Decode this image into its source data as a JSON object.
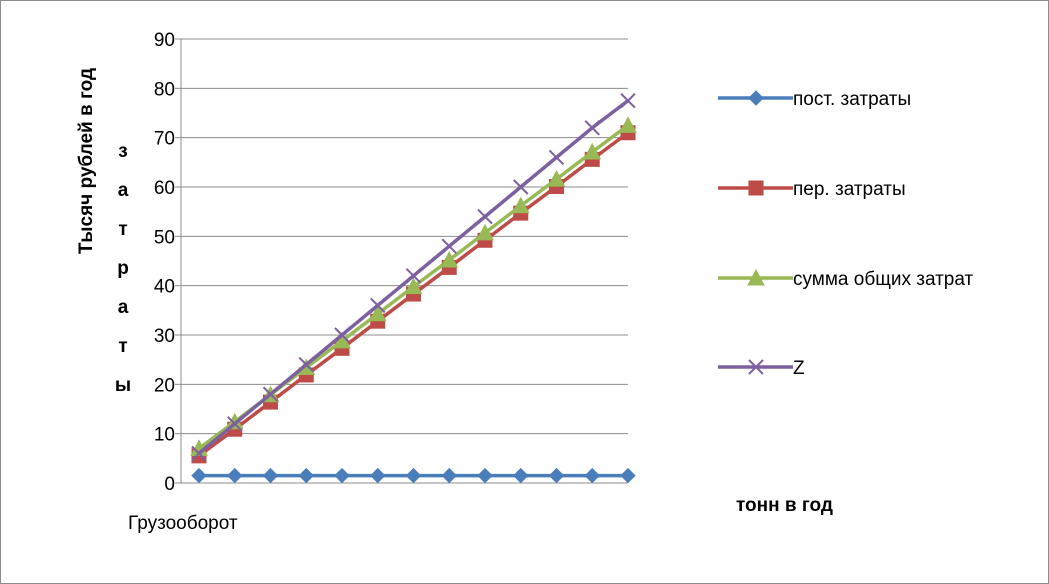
{
  "chart_data": {
    "type": "line",
    "ylabel": "Тысяч рублей в год",
    "ylabel_secondary": "Затраты",
    "xlabel": "Грузооборот",
    "x_unit_label": "тонн в год",
    "ylim": [
      0,
      90
    ],
    "yticks": [
      0,
      10,
      20,
      30,
      40,
      50,
      60,
      70,
      80,
      90
    ],
    "grid": true,
    "legend_position": "right",
    "points_per_series": 13,
    "series": [
      {
        "name": "пост. затраты",
        "color": "#4a7ebb",
        "marker": "diamond",
        "values": [
          1.5,
          1.5,
          1.5,
          1.5,
          1.5,
          1.5,
          1.5,
          1.5,
          1.5,
          1.5,
          1.5,
          1.5,
          1.5
        ]
      },
      {
        "name": "пер. затраты",
        "color": "#be4b48",
        "marker": "square",
        "values": [
          5.5,
          10.9,
          16.4,
          21.9,
          27.3,
          32.8,
          38.3,
          43.7,
          49.2,
          54.7,
          60.1,
          65.6,
          71.0
        ]
      },
      {
        "name": "сумма общих затрат",
        "color": "#98b954",
        "marker": "triangle",
        "values": [
          7.0,
          12.4,
          17.9,
          23.4,
          28.8,
          34.3,
          39.8,
          45.2,
          50.7,
          56.2,
          61.6,
          67.1,
          72.5
        ]
      },
      {
        "name": "Z",
        "color": "#7d60a0",
        "marker": "x",
        "values": [
          6.0,
          12.0,
          18.0,
          24.0,
          30.0,
          36.0,
          42.0,
          48.0,
          54.0,
          60.0,
          66.0,
          72.0,
          77.5
        ]
      }
    ]
  }
}
